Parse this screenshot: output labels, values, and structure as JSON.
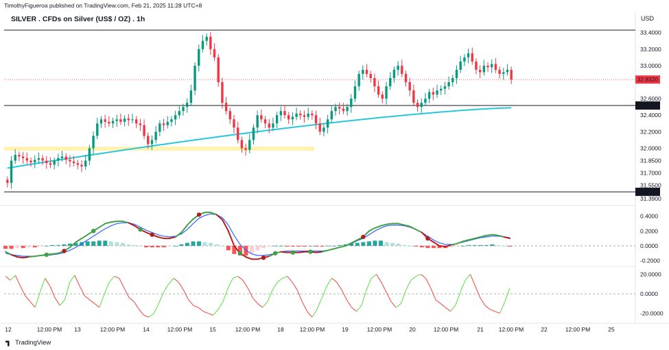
{
  "publisher_line": "TimothyFigueroa published on TradingView.com, Feb 21, 2025 11:28 UTC+8",
  "symbol_title": "SILVER . CFDs on Silver (US$ / OZ) . 1h",
  "currency": "USD",
  "brand": "TradingView",
  "colors": {
    "up_candle": "#089981",
    "down_candle": "#f23645",
    "ma_line": "#26c6da",
    "zone_fill": "#fff2b3",
    "macd_fast": "#43a047",
    "macd_slow_down": "#b71c1c",
    "macd_signal": "#2962ff",
    "rsi_up": "#66e04f",
    "rsi_down": "#ef5350",
    "last_price_label": "#f23645",
    "level_label": "#131722"
  },
  "chart_data": [
    {
      "type": "candlestick",
      "ylim": [
        31.39,
        33.48
      ],
      "price_ticks": [
        "33.4000",
        "33.2000",
        "33.0000",
        "32.6000",
        "32.4000",
        "32.2000",
        "32.0000",
        "31.8500",
        "31.7000",
        "31.5500",
        "31.3900"
      ],
      "x_ticks": [
        "12",
        "12:00 PM",
        "13",
        "12:00 PM",
        "14",
        "12:00 PM",
        "15",
        "12:00 PM",
        "18",
        "12:00 PM",
        "19",
        "12:00 PM",
        "20",
        "12:00 PM",
        "21",
        "12:00 PM",
        "22",
        "12:00 PM",
        "25"
      ],
      "closes": [
        31.58,
        31.85,
        31.92,
        31.9,
        31.88,
        31.85,
        31.83,
        31.86,
        31.88,
        31.85,
        31.82,
        31.8,
        31.85,
        31.88,
        31.9,
        31.86,
        31.84,
        31.82,
        31.8,
        31.78,
        31.85,
        32.0,
        32.15,
        32.3,
        32.35,
        32.32,
        32.3,
        32.33,
        32.35,
        32.32,
        32.36,
        32.34,
        32.35,
        32.3,
        32.28,
        32.15,
        32.05,
        32.1,
        32.2,
        32.3,
        32.28,
        32.32,
        32.35,
        32.4,
        32.45,
        32.5,
        32.55,
        32.7,
        33.0,
        33.2,
        33.3,
        33.35,
        33.2,
        33.1,
        32.8,
        32.55,
        32.45,
        32.35,
        32.25,
        32.1,
        32.0,
        31.98,
        32.1,
        32.25,
        32.4,
        32.35,
        32.3,
        32.25,
        32.3,
        32.4,
        32.45,
        32.4,
        32.35,
        32.38,
        32.42,
        32.4,
        32.38,
        32.42,
        32.4,
        32.3,
        32.2,
        32.25,
        32.35,
        32.45,
        32.5,
        32.48,
        32.45,
        32.5,
        32.6,
        32.75,
        32.9,
        32.95,
        32.9,
        32.85,
        32.75,
        32.65,
        32.6,
        32.75,
        32.85,
        32.95,
        33.0,
        32.9,
        32.8,
        32.7,
        32.55,
        32.5,
        32.55,
        32.6,
        32.68,
        32.65,
        32.7,
        32.72,
        32.75,
        32.8,
        32.85,
        32.95,
        33.05,
        33.1,
        33.15,
        33.05,
        32.95,
        32.92,
        33.0,
        32.98,
        33.02,
        32.95,
        32.9,
        32.92,
        32.95,
        32.83
      ],
      "ma_start": 31.76,
      "ma_end": 32.49,
      "last_price": "32.8320",
      "levels": [
        {
          "value": 33.43,
          "label": ""
        },
        {
          "value": 32.5177,
          "label": "32.5177"
        },
        {
          "value": 31.4724,
          "label": "31.4724"
        }
      ],
      "zone": {
        "low": 31.97,
        "high": 32.02
      }
    },
    {
      "type": "line",
      "name": "",
      "ylim": [
        -0.25,
        0.47
      ],
      "y_ticks": [
        "0.4000",
        "0.2000",
        "0.0000",
        "-0.2000"
      ],
      "fast_values": [
        -0.08,
        -0.12,
        -0.15,
        -0.16,
        -0.15,
        -0.14,
        -0.13,
        -0.12,
        -0.11,
        -0.1,
        -0.07,
        -0.02,
        0.05,
        0.1,
        0.15,
        0.2,
        0.25,
        0.3,
        0.32,
        0.33,
        0.33,
        0.31,
        0.27,
        0.22,
        0.18,
        0.15,
        0.12,
        0.1,
        0.1,
        0.12,
        0.18,
        0.28,
        0.36,
        0.42,
        0.45,
        0.45,
        0.42,
        0.35,
        0.2,
        0.0,
        -0.1,
        -0.15,
        -0.18,
        -0.18,
        -0.16,
        -0.14,
        -0.1,
        -0.08,
        -0.09,
        -0.09,
        -0.09,
        -0.08,
        -0.08,
        -0.09,
        -0.08,
        -0.06,
        -0.04,
        -0.02,
        0.0,
        0.04,
        0.08,
        0.12,
        0.2,
        0.24,
        0.27,
        0.29,
        0.3,
        0.3,
        0.28,
        0.26,
        0.22,
        0.18,
        0.1,
        0.05,
        0.0,
        -0.01,
        0.01,
        0.03,
        0.06,
        0.08,
        0.1,
        0.12,
        0.14,
        0.15,
        0.14,
        0.12,
        0.1
      ],
      "signal_values": [
        -0.1,
        -0.12,
        -0.13,
        -0.14,
        -0.14,
        -0.14,
        -0.13,
        -0.13,
        -0.12,
        -0.11,
        -0.09,
        -0.06,
        -0.02,
        0.03,
        0.08,
        0.13,
        0.18,
        0.23,
        0.27,
        0.3,
        0.31,
        0.31,
        0.29,
        0.25,
        0.21,
        0.18,
        0.15,
        0.13,
        0.12,
        0.13,
        0.16,
        0.22,
        0.3,
        0.37,
        0.41,
        0.43,
        0.42,
        0.38,
        0.28,
        0.14,
        0.02,
        -0.06,
        -0.11,
        -0.13,
        -0.13,
        -0.12,
        -0.1,
        -0.08,
        -0.07,
        -0.07,
        -0.07,
        -0.07,
        -0.07,
        -0.07,
        -0.07,
        -0.06,
        -0.04,
        -0.02,
        0.0,
        0.03,
        0.07,
        0.1,
        0.15,
        0.2,
        0.24,
        0.27,
        0.28,
        0.28,
        0.27,
        0.25,
        0.22,
        0.18,
        0.13,
        0.08,
        0.04,
        0.02,
        0.02,
        0.03,
        0.05,
        0.07,
        0.09,
        0.11,
        0.12,
        0.13,
        0.13,
        0.12,
        0.11
      ],
      "histogram": [
        -0.04,
        -0.04,
        -0.03,
        -0.03,
        -0.02,
        -0.02,
        -0.01,
        0.0,
        0.01,
        0.01,
        0.02,
        0.03,
        0.04,
        0.05,
        0.06,
        0.06,
        0.07,
        0.07,
        0.06,
        0.05,
        0.04,
        0.02,
        0.01,
        0.0,
        -0.02,
        -0.02,
        -0.02,
        -0.02,
        -0.01,
        0.0,
        0.02,
        0.04,
        0.06,
        0.06,
        0.05,
        0.04,
        0.02,
        0.0,
        -0.06,
        -0.11,
        -0.13,
        -0.13,
        -0.1,
        -0.06,
        -0.03,
        -0.01,
        0.0,
        0.0,
        -0.01,
        -0.01,
        -0.01,
        -0.01,
        0.0,
        -0.01,
        -0.01,
        0.0,
        0.0,
        0.01,
        0.02,
        0.03,
        0.04,
        0.05,
        0.06,
        0.07,
        0.07,
        0.05,
        0.04,
        0.03,
        0.01,
        0.0,
        -0.01,
        -0.02,
        -0.03,
        -0.03,
        -0.03,
        -0.03,
        -0.02,
        -0.01,
        0.0,
        0.01,
        0.01,
        0.01,
        0.01,
        0.02,
        0.01,
        0.0,
        -0.01
      ],
      "cross_up_dots": [
        7,
        15,
        23,
        40,
        46,
        49,
        52
      ],
      "cross_down_dots": [
        10,
        25,
        33,
        44,
        61,
        72
      ]
    },
    {
      "type": "line",
      "name": "",
      "ylim": [
        -26,
        26
      ],
      "y_ticks": [
        "20.0000",
        "0.0000",
        "-20.0000"
      ],
      "values": [
        18,
        14,
        19,
        8,
        -2,
        -8,
        -14,
        2,
        16,
        8,
        -4,
        -12,
        -6,
        12,
        19,
        8,
        -2,
        -6,
        -10,
        -14,
        0,
        12,
        18,
        16,
        6,
        -4,
        -8,
        -16,
        -22,
        -24,
        -20,
        -10,
        2,
        10,
        16,
        12,
        4,
        -6,
        -12,
        -14,
        -18,
        -20,
        -22,
        -16,
        -8,
        6,
        16,
        18,
        14,
        6,
        -4,
        -10,
        -14,
        -8,
        4,
        12,
        16,
        18,
        12,
        4,
        -8,
        -18,
        -24,
        -16,
        -4,
        8,
        16,
        12,
        4,
        -6,
        -14,
        -18,
        -12,
        4,
        16,
        20,
        12,
        2,
        -8,
        -14,
        -10,
        4,
        14,
        18,
        20,
        16,
        6,
        -6,
        -10,
        -14,
        -18,
        -12,
        2,
        14,
        20,
        8,
        -4,
        -12,
        -16,
        -18,
        -20,
        -8,
        6
      ]
    }
  ]
}
